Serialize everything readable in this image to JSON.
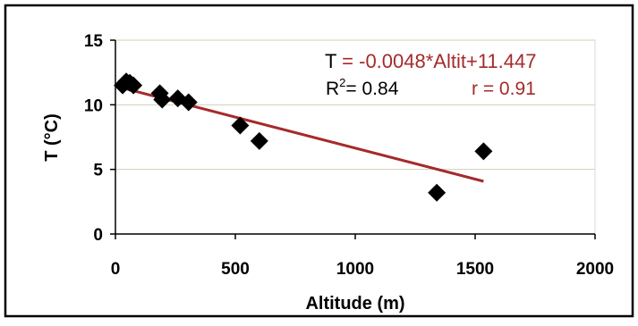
{
  "chart_data": {
    "type": "scatter",
    "xlabel": "Altitude (m)",
    "ylabel": "T (°C)",
    "xlim": [
      0,
      2000
    ],
    "ylim": [
      0,
      15
    ],
    "x_ticks": [
      "0",
      "500",
      "1000",
      "1500",
      "2000"
    ],
    "y_ticks": [
      "0",
      "5",
      "10",
      "15"
    ],
    "grid": "horizontal",
    "series": [
      {
        "type": "scatter",
        "marker": "diamond",
        "color": "#000000",
        "points": [
          {
            "x": 30,
            "y": 11.5
          },
          {
            "x": 45,
            "y": 11.8
          },
          {
            "x": 60,
            "y": 11.7
          },
          {
            "x": 75,
            "y": 11.5
          },
          {
            "x": 185,
            "y": 10.9
          },
          {
            "x": 195,
            "y": 10.4
          },
          {
            "x": 260,
            "y": 10.5
          },
          {
            "x": 305,
            "y": 10.2
          },
          {
            "x": 520,
            "y": 8.4
          },
          {
            "x": 600,
            "y": 7.2
          },
          {
            "x": 1340,
            "y": 3.2
          },
          {
            "x": 1535,
            "y": 6.4
          }
        ]
      },
      {
        "type": "line",
        "role": "trendline",
        "color": "#a52a2a",
        "slope": -0.0048,
        "intercept": 11.447,
        "x_range": [
          0,
          1535
        ]
      }
    ],
    "annotations": {
      "equation": {
        "prefix": "T",
        "rest": " = -0.0048*Altit+11.447"
      },
      "r_squared": {
        "base": "R",
        "sup": "2",
        "value": "= 0.84"
      },
      "r": "r = 0.91"
    }
  }
}
